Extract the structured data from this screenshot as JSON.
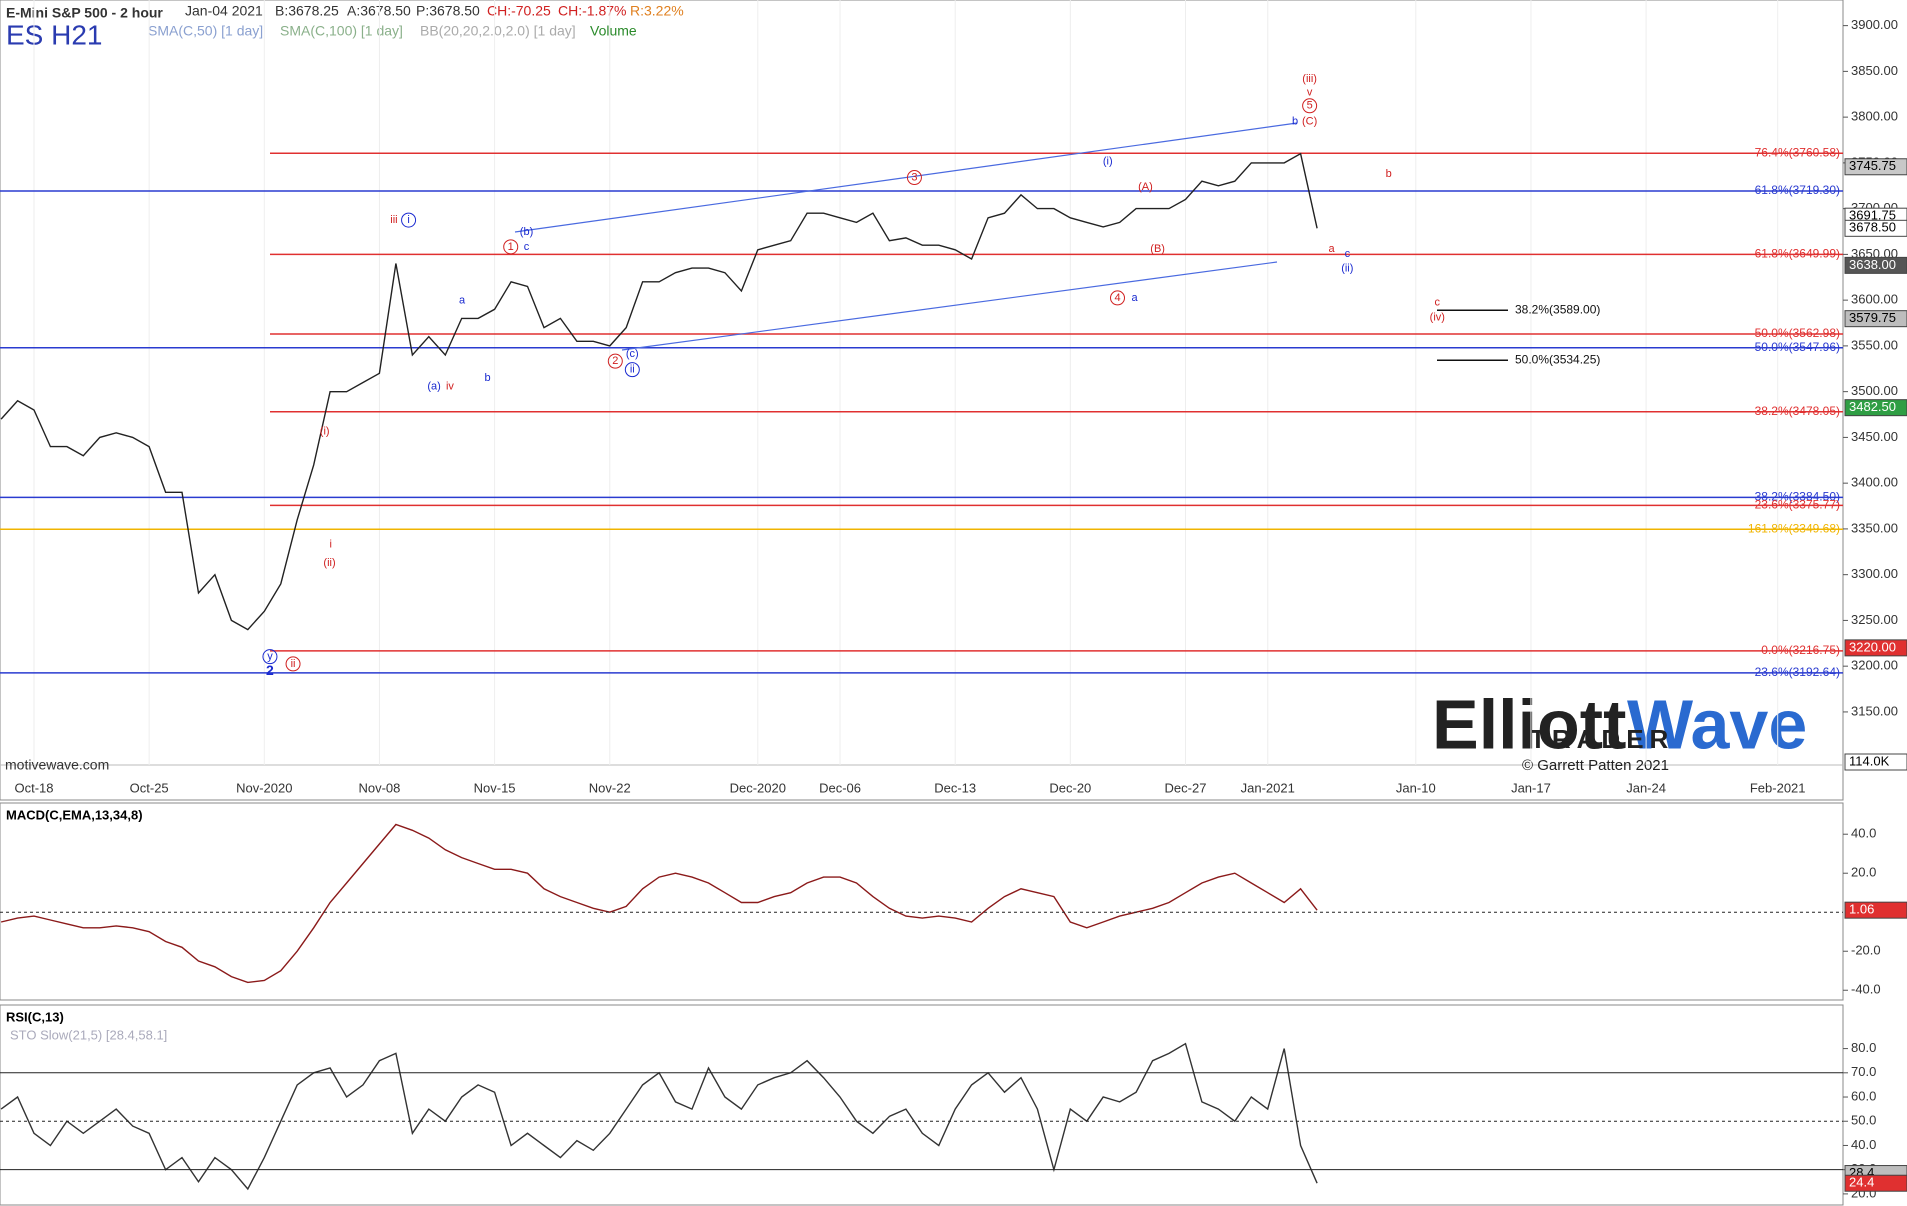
{
  "header": {
    "title": "E-Mini S&P 500 - 2 hour",
    "date": "Jan-04 2021",
    "bid": "B:3678.25",
    "ask": "A:3678.50",
    "price": "P:3678.50",
    "change": "CH:-70.25",
    "change_pct": "CH:-1.87%",
    "range": "R:3.22%",
    "symbol": "ES H21",
    "indicators": [
      "SMA(C,50) [1 day]",
      "SMA(C,100) [1 day]",
      "BB(20,20,2.0,2.0) [1 day]",
      "Volume"
    ],
    "source": "motivewave.com"
  },
  "logo": {
    "part1": "Elliott",
    "part2": "Wave",
    "sub": "TRADER",
    "credit": "© Garrett Patten 2021"
  },
  "chart_data": [
    {
      "type": "line",
      "categories": [
        null,
        null,
        "Oct-18",
        null,
        null,
        null,
        null,
        null,
        null,
        "Oct-25",
        null,
        null,
        null,
        null,
        null,
        null,
        "Nov-2020",
        null,
        null,
        null,
        null,
        null,
        null,
        "Nov-08",
        null,
        null,
        null,
        null,
        null,
        null,
        "Nov-15",
        null,
        null,
        null,
        null,
        null,
        null,
        "Nov-22",
        null,
        null,
        null,
        null,
        null,
        null,
        null,
        null,
        "Dec-2020",
        null,
        null,
        null,
        null,
        "Dec-06",
        null,
        null,
        null,
        null,
        null,
        null,
        "Dec-13",
        null,
        null,
        null,
        null,
        null,
        null,
        "Dec-20",
        null,
        null,
        null,
        null,
        null,
        null,
        "Dec-27",
        null,
        null,
        null,
        null,
        "Jan-2021",
        null,
        null,
        null,
        null,
        null,
        null,
        null,
        null,
        "Jan-10",
        null,
        null,
        null,
        null,
        null,
        null,
        "Jan-17",
        null,
        null,
        null,
        null,
        null,
        null,
        "Jan-24",
        null,
        null,
        null,
        null,
        null,
        null,
        null,
        "Feb-2021",
        null,
        null,
        null,
        null
      ],
      "series": [
        {
          "name": "ES H21",
          "color": "#222222",
          "values": [
            3470,
            3490,
            3480,
            3440,
            3440,
            3430,
            3450,
            3455,
            3450,
            3440,
            3390,
            3390,
            3280,
            3300,
            3250,
            3240,
            3260,
            3290,
            3360,
            3420,
            3500,
            3500,
            3510,
            3520,
            3640,
            3540,
            3560,
            3540,
            3580,
            3580,
            3590,
            3620,
            3615,
            3570,
            3580,
            3555,
            3555,
            3550,
            3570,
            3620,
            3620,
            3630,
            3635,
            3635,
            3630,
            3610,
            3655,
            3660,
            3665,
            3695,
            3695,
            3690,
            3685,
            3695,
            3665,
            3668,
            3660,
            3660,
            3655,
            3645,
            3690,
            3695,
            3715,
            3700,
            3700,
            3690,
            3685,
            3680,
            3685,
            3700,
            3700,
            3700,
            3710,
            3730,
            3725,
            3730,
            3750,
            3750,
            3750,
            3760,
            3678.5,
            null,
            null,
            null,
            null,
            null,
            null,
            null,
            null,
            null,
            null,
            null,
            null,
            null,
            null,
            null,
            null,
            null,
            null,
            null,
            null,
            null,
            null,
            null,
            null,
            null,
            null,
            null,
            null,
            null,
            null,
            null,
            null
          ]
        }
      ],
      "ylim": [
        3092,
        3928
      ],
      "yticks": [
        {
          "value": 3150,
          "label": "3150.00"
        },
        {
          "value": 3200,
          "label": "3200.00"
        },
        {
          "value": 3250,
          "label": "3250.00"
        },
        {
          "value": 3300,
          "label": "3300.00"
        },
        {
          "value": 3350,
          "label": "3350.00"
        },
        {
          "value": 3400,
          "label": "3400.00"
        },
        {
          "value": 3450,
          "label": "3450.00"
        },
        {
          "value": 3500,
          "label": "3500.00"
        },
        {
          "value": 3550,
          "label": "3550.00"
        },
        {
          "value": 3600,
          "label": "3600.00"
        },
        {
          "value": 3650,
          "label": "3650.00"
        },
        {
          "value": 3700,
          "label": "3700.00"
        },
        {
          "value": 3750,
          "label": "3750.00"
        },
        {
          "value": 3800,
          "label": "3800.00"
        },
        {
          "value": 3850,
          "label": "3850.00"
        },
        {
          "value": 3900,
          "label": "3900.00"
        }
      ],
      "levels": [
        {
          "value": 3760.58,
          "label": "76.4%(3760.58)",
          "color": "#e03030"
        },
        {
          "value": 3719.3,
          "label": "61.8%(3719.30)",
          "color": "#2a3bd0"
        },
        {
          "value": 3649.99,
          "label": "61.8%(3649.99)",
          "color": "#e03030"
        },
        {
          "value": 3589,
          "label": "38.2%(3589.00)",
          "color": "#111111"
        },
        {
          "value": 3562.98,
          "label": "50.0%(3562.98)",
          "color": "#e03030"
        },
        {
          "value": 3547.96,
          "label": "50.0%(3547.96)",
          "color": "#2a3bd0"
        },
        {
          "value": 3534.25,
          "label": "50.0%(3534.25)",
          "color": "#111111"
        },
        {
          "value": 3478.05,
          "label": "38.2%(3478.05)",
          "color": "#e03030"
        },
        {
          "value": 3384.5,
          "label": "38.2%(3384.50)",
          "color": "#2a3bd0"
        },
        {
          "value": 3375.77,
          "label": "23.6%(3375.77)",
          "color": "#e03030"
        },
        {
          "value": 3349.68,
          "label": "161.8%(3349.68)",
          "color": "#f0b400"
        },
        {
          "value": 3216.75,
          "label": "0.0%(3216.75)",
          "color": "#e03030"
        },
        {
          "value": 3192.64,
          "label": "23.6%(3192.64)",
          "color": "#2a3bd0"
        }
      ],
      "price_labels": [
        3745.75,
        3691.75,
        {
          "value": 3678.5,
          "label": "3678.50"
        },
        {
          "value": 3638,
          "label": "3638.00"
        },
        3579.75,
        {
          "value": 3482.5,
          "label": "3482.50"
        },
        {
          "value": 3220,
          "label": "3220.00"
        }
      ],
      "price_label_colors": [
        "#c8c8c8",
        "#ffffff",
        "#ffffff",
        "#555555",
        "#bdbdbd",
        "#2f9e44",
        "#e03030"
      ],
      "volume_label": "114.0K",
      "annotations": [
        "(iii)",
        "v",
        "5",
        "(C)",
        "b",
        "(i)",
        "3",
        "(A)",
        "iii",
        "i",
        "(b)",
        "1",
        "c",
        "(B)",
        "a",
        "c",
        "(ii)",
        "4",
        "a",
        "a",
        "c",
        "(iv)",
        "(c)",
        "2",
        "ii",
        "(a)",
        "iv",
        "b",
        "(i)",
        "i",
        "(ii)",
        "y",
        "2",
        "ii",
        "b"
      ]
    },
    {
      "type": "line",
      "title": "MACD(C,EMA,13,34,8)",
      "series": [
        {
          "name": "MACD",
          "color": "#8b1a1a",
          "values": [
            -5,
            -3,
            -2,
            -4,
            -6,
            -8,
            -8,
            -7,
            -8,
            -10,
            -15,
            -18,
            -25,
            -28,
            -33,
            -36,
            -35,
            -30,
            -20,
            -8,
            5,
            15,
            25,
            35,
            45,
            42,
            38,
            32,
            28,
            25,
            22,
            22,
            20,
            12,
            8,
            5,
            2,
            0,
            3,
            12,
            18,
            20,
            18,
            15,
            10,
            5,
            5,
            8,
            10,
            15,
            18,
            18,
            15,
            8,
            2,
            -2,
            -3,
            -2,
            -3,
            -5,
            2,
            8,
            12,
            10,
            8,
            -5,
            -8,
            -5,
            -2,
            0,
            2,
            5,
            10,
            15,
            18,
            20,
            15,
            10,
            5,
            12,
            1.06,
            null,
            null,
            null,
            null,
            null,
            null,
            null,
            null,
            null,
            null,
            null,
            null,
            null,
            null,
            null,
            null,
            null,
            null,
            null,
            null,
            null,
            null,
            null,
            null,
            null,
            null,
            null,
            null,
            null,
            null,
            null,
            null
          ]
        }
      ],
      "ylim": [
        -45,
        56
      ],
      "yticks": [
        {
          "value": 40,
          "label": "40.0"
        },
        {
          "value": 20,
          "label": "20.0"
        },
        {
          "value": -20,
          "label": "-20.0"
        },
        {
          "value": -40,
          "label": "-40.0"
        }
      ],
      "zero_line": 0,
      "last_label": 1.06
    },
    {
      "type": "line",
      "title": "RSI(C,13)",
      "subtitle": "STO Slow(21,5) [28.4,58.1]",
      "series": [
        {
          "name": "RSI",
          "color": "#333333",
          "values": [
            55,
            60,
            45,
            40,
            50,
            45,
            50,
            55,
            48,
            45,
            30,
            35,
            25,
            35,
            30,
            22,
            35,
            50,
            65,
            70,
            72,
            60,
            65,
            75,
            78,
            45,
            55,
            50,
            60,
            65,
            62,
            40,
            45,
            40,
            35,
            42,
            38,
            45,
            55,
            65,
            70,
            58,
            55,
            72,
            60,
            55,
            65,
            68,
            70,
            75,
            68,
            60,
            50,
            45,
            52,
            55,
            45,
            40,
            55,
            65,
            70,
            62,
            68,
            55,
            30,
            55,
            50,
            60,
            58,
            62,
            75,
            78,
            82,
            58,
            55,
            50,
            60,
            55,
            80,
            40,
            24.4,
            null,
            null,
            null,
            null,
            null,
            null,
            null,
            null,
            null,
            null,
            null,
            null,
            null,
            null,
            null,
            null,
            null,
            null,
            null,
            null,
            null,
            null,
            null,
            null,
            null,
            null,
            null,
            null,
            null,
            null,
            null,
            null
          ]
        }
      ],
      "ylim": [
        15,
        98
      ],
      "yticks": [
        {
          "value": 20,
          "label": "20.0"
        },
        {
          "value": 30,
          "label": "30.0"
        },
        {
          "value": 40,
          "label": "40.0"
        },
        {
          "value": 50,
          "label": "50.0"
        },
        {
          "value": 60,
          "label": "60.0"
        },
        {
          "value": 70,
          "label": "70.0"
        },
        {
          "value": 80,
          "label": "80.0"
        }
      ],
      "levels": [
        70,
        50,
        30
      ],
      "last_labels": [
        28.4,
        24.4
      ]
    }
  ]
}
